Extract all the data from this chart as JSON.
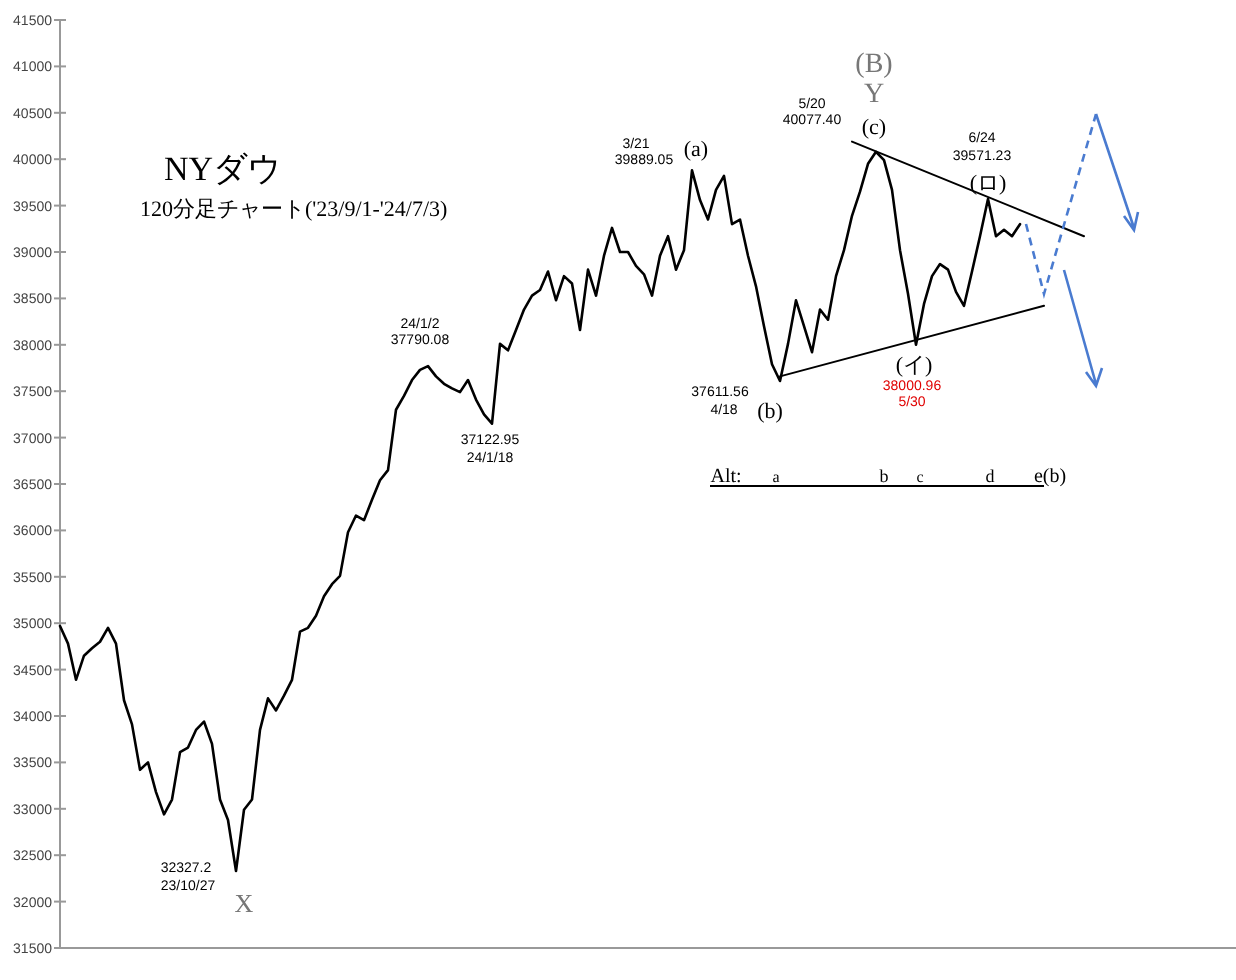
{
  "chart_data": {
    "type": "line",
    "title": "NYダウ",
    "subtitle": "120分足チャート('23/9/1-'24/7/3)",
    "categories": [
      null,
      null,
      null,
      null,
      null,
      null,
      null,
      null,
      null,
      null,
      null,
      null,
      null,
      null,
      null,
      null,
      null,
      null,
      null,
      null,
      null,
      null,
      null,
      null,
      null,
      null,
      null,
      null,
      null,
      null,
      null,
      null,
      null,
      null,
      null,
      null,
      null,
      null,
      null,
      null,
      null,
      null,
      null,
      null,
      null,
      null,
      null,
      null,
      null,
      null,
      null,
      null,
      null,
      null,
      null,
      null,
      null,
      null,
      null,
      null,
      null,
      null,
      null,
      null,
      null,
      null,
      null,
      null,
      null,
      null,
      null,
      null,
      null,
      null,
      null,
      null,
      null,
      null,
      null,
      null,
      null,
      null,
      null,
      null,
      null,
      null,
      null,
      null,
      null,
      null,
      null,
      null,
      null,
      null,
      null,
      null,
      null,
      null,
      null,
      null,
      null,
      null,
      null,
      null,
      null,
      null,
      null,
      null,
      null,
      null,
      null,
      null,
      null,
      null,
      null,
      null,
      null,
      null,
      null,
      null,
      null,
      null,
      null,
      null,
      null,
      null,
      null,
      null,
      null,
      null,
      null,
      null,
      null,
      null,
      null,
      null,
      null,
      null,
      null,
      null,
      null,
      null,
      null,
      null,
      null,
      null,
      null,
      null,
      null,
      null,
      null
    ],
    "series": [
      {
        "color": "#000000",
        "values": [
          34970,
          34780,
          34390,
          34650,
          34730,
          34800,
          34950,
          34780,
          34170,
          33910,
          33420,
          33500,
          33180,
          32940,
          33100,
          33610,
          33660,
          33850,
          33940,
          33700,
          33100,
          32880,
          32330,
          32990,
          33100,
          33850,
          34190,
          34060,
          34220,
          34390,
          34910,
          34950,
          35080,
          35290,
          35420,
          35510,
          35980,
          36160,
          36110,
          36330,
          36540,
          36650,
          37300,
          37450,
          37620,
          37730,
          37770,
          37660,
          37580,
          37530,
          37490,
          37620,
          37410,
          37250,
          37150,
          38010,
          37940,
          38160,
          38380,
          38530,
          38590,
          38790,
          38480,
          38740,
          38660,
          38160,
          38810,
          38530,
          38960,
          39260,
          39000,
          39000,
          38850,
          38760,
          38530,
          38960,
          39170,
          38810,
          39020,
          39880,
          39560,
          39350,
          39670,
          39820,
          39300,
          39350,
          38960,
          38630,
          38200,
          37790,
          37610,
          38010,
          38480,
          38200,
          37920,
          38380,
          38270,
          38740,
          39020,
          39390,
          39650,
          39950,
          40080,
          39990,
          39670,
          39020,
          38550,
          38000,
          38440,
          38740,
          38870,
          38810,
          38570,
          38420,
          38790,
          39170,
          39570,
          39170,
          39240,
          39170,
          39300,
          null,
          null,
          null,
          null,
          null,
          null,
          null,
          null,
          null,
          null,
          null,
          null,
          null,
          null,
          null,
          null,
          null,
          null,
          null,
          null,
          null,
          null,
          null,
          null,
          null,
          null,
          null,
          null,
          null,
          null
        ]
      },
      {
        "color": "#000000",
        "values": [
          null,
          null,
          null,
          null,
          null,
          null,
          null,
          null,
          null,
          null,
          null,
          null,
          null,
          null,
          null,
          null,
          null,
          null,
          null,
          null,
          null,
          null,
          null,
          null,
          null,
          null,
          null,
          null,
          null,
          null,
          null,
          null,
          null,
          null,
          null,
          null,
          null,
          null,
          null,
          null,
          null,
          null,
          null,
          null,
          null,
          null,
          null,
          null,
          null,
          null,
          null,
          null,
          null,
          null,
          null,
          null,
          null,
          null,
          null,
          null,
          null,
          null,
          null,
          null,
          null,
          null,
          null,
          null,
          null,
          null,
          null,
          null,
          null,
          null,
          null,
          null,
          null,
          null,
          null,
          null,
          null,
          null,
          null,
          null,
          null,
          null,
          null,
          null,
          null,
          null,
          null,
          null,
          null,
          null,
          null,
          null,
          null,
          null,
          null,
          40190,
          null,
          null,
          null,
          null,
          null,
          null,
          null,
          null,
          null,
          null,
          null,
          null,
          null,
          null,
          null,
          null,
          null,
          null,
          null,
          null,
          null,
          null,
          null,
          null,
          null,
          null,
          null,
          null,
          39170,
          null,
          null,
          null,
          null,
          null,
          null,
          null,
          null,
          null,
          null,
          null,
          null,
          null,
          null,
          null,
          null,
          null,
          null,
          null,
          null,
          null,
          null
        ]
      },
      {
        "color": "#000000",
        "values": [
          null,
          null,
          null,
          null,
          null,
          null,
          null,
          null,
          null,
          null,
          null,
          null,
          null,
          null,
          null,
          null,
          null,
          null,
          null,
          null,
          null,
          null,
          null,
          null,
          null,
          null,
          null,
          null,
          null,
          null,
          null,
          null,
          null,
          null,
          null,
          null,
          null,
          null,
          null,
          null,
          null,
          null,
          null,
          null,
          null,
          null,
          null,
          null,
          null,
          null,
          null,
          null,
          null,
          null,
          null,
          null,
          null,
          null,
          null,
          null,
          null,
          null,
          null,
          null,
          null,
          null,
          null,
          null,
          null,
          null,
          null,
          null,
          null,
          null,
          null,
          null,
          null,
          null,
          null,
          null,
          null,
          null,
          null,
          null,
          null,
          null,
          null,
          null,
          null,
          null,
          37660,
          null,
          null,
          null,
          null,
          null,
          null,
          null,
          null,
          null,
          null,
          null,
          null,
          null,
          null,
          null,
          null,
          null,
          null,
          null,
          null,
          null,
          null,
          null,
          null,
          null,
          null,
          null,
          null,
          null,
          null,
          null,
          null,
          38420,
          null,
          null,
          null,
          null,
          null,
          null,
          null,
          null,
          null,
          null,
          null,
          null,
          null,
          null,
          null,
          null,
          null,
          null,
          null,
          null,
          null,
          null,
          null,
          null,
          null,
          null,
          null
        ]
      }
    ],
    "ylim": [
      31500,
      41500
    ],
    "yticks": [
      31500,
      32000,
      32500,
      33000,
      33500,
      34000,
      34500,
      35000,
      35500,
      36000,
      36500,
      37000,
      37500,
      38000,
      38500,
      39000,
      39500,
      40000,
      40500,
      41000,
      41500
    ],
    "tick_labels": "y",
    "annotations": [
      "(B)",
      "Y",
      "5/20",
      "40077.40",
      "(c)",
      "3/21",
      "39889.05",
      "(a)",
      "6/24",
      "39571.23",
      "(ロ)",
      "24/1/2",
      "37790.08",
      "37122.95",
      "24/1/18",
      "37611.56",
      "4/18",
      "(b)",
      "(イ)",
      "38000.96",
      "5/30",
      "32327.2",
      "23/10/27",
      "X",
      "Alt:",
      "a",
      "b",
      "c",
      "d",
      "e(b)"
    ]
  }
}
